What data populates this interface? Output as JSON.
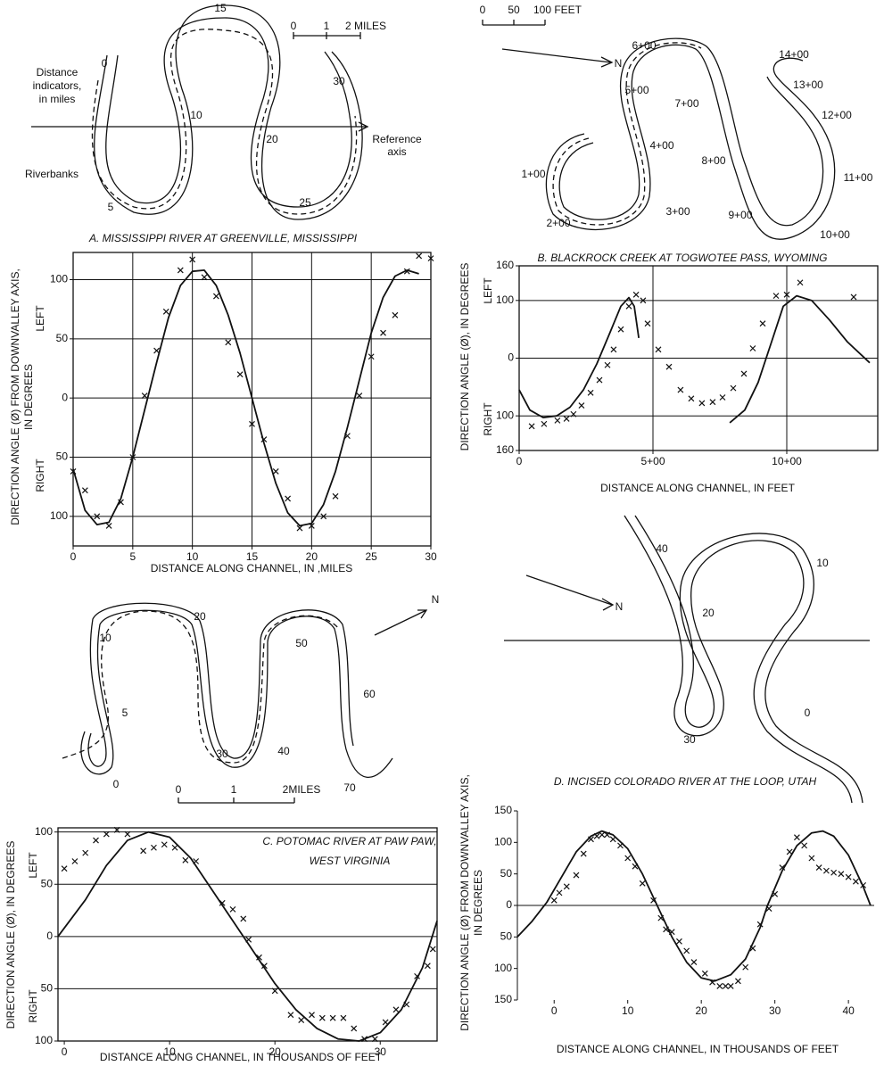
{
  "chart_data": [
    {
      "type": "scatter",
      "title": "A. MISSISSIPPI RIVER AT GREENVILLE, MISSISSIPPI",
      "map_labels": [
        "15",
        "0",
        "Distance",
        "indicators,",
        "in miles",
        "10",
        "30",
        "20",
        "Reference",
        "axis",
        "Riverbanks",
        "5",
        "25",
        "0",
        "1",
        "2 MILES"
      ],
      "ylabel": [
        "DIRECTION ANGLE (Ø) FROM DOWNVALLEY AXIS,",
        "IN DEGREES"
      ],
      "ylabel_left": "LEFT",
      "ylabel_right": "RIGHT",
      "xlabel": "DISTANCE ALONG CHANNEL, IN ,MILES",
      "xlim": [
        0,
        30
      ],
      "ylim": [
        -125,
        123
      ],
      "xticks": [
        0,
        5,
        10,
        15,
        20,
        25,
        30
      ],
      "yticks": [
        {
          "value": -100,
          "label": "100"
        },
        {
          "value": -50,
          "label": "50"
        },
        0,
        50,
        100
      ],
      "grid": "both",
      "frame": true,
      "series": [
        {
          "style": "marker",
          "color": "#111",
          "x": [
            0,
            1,
            2,
            3,
            4,
            5,
            6,
            7,
            7.8,
            9,
            10,
            11,
            12,
            13,
            14,
            15,
            16,
            17,
            18,
            19,
            20,
            21,
            22,
            23,
            24,
            25,
            26,
            27,
            28,
            29,
            30
          ],
          "values": [
            -62,
            -78,
            -100,
            -108,
            -88,
            -50,
            2,
            40,
            73,
            108,
            117,
            102,
            86,
            47,
            20,
            -22,
            -35,
            -62,
            -85,
            -110,
            -108,
            -100,
            -83,
            -32,
            2,
            35,
            55,
            70,
            107,
            120,
            118
          ]
        },
        {
          "style": "line",
          "color": "#111",
          "x": [
            0,
            1,
            2,
            3,
            4,
            5,
            6,
            7,
            8,
            9,
            10,
            11,
            12,
            13,
            14,
            15,
            16,
            17,
            18,
            19,
            20,
            21,
            22,
            23,
            24,
            25,
            26,
            27,
            28,
            29
          ],
          "values": [
            -60,
            -95,
            -107,
            -105,
            -85,
            -50,
            -10,
            30,
            68,
            95,
            107,
            108,
            95,
            70,
            38,
            0,
            -38,
            -72,
            -97,
            -108,
            -106,
            -90,
            -62,
            -25,
            15,
            55,
            85,
            103,
            108,
            105
          ]
        }
      ]
    },
    {
      "type": "scatter",
      "title": "B. BLACKROCK CREEK AT TOGWOTEE PASS, WYOMING",
      "map_labels": [
        "0",
        "50",
        "100 FEET",
        "N",
        "6+00",
        "5+00",
        "7+00",
        "4+00",
        "1+00",
        "8+00",
        "2+00",
        "3+00",
        "9+00",
        "10+00",
        "11+00",
        "12+00",
        "13+00",
        "14+00"
      ],
      "ylabel": [
        "DIRECTION ANGLE (Ø), IN DEGREES"
      ],
      "ylabel_left": "LEFT",
      "ylabel_right": "RIGHT",
      "xlabel": "DISTANCE ALONG CHANNEL, IN FEET",
      "xlim": [
        0,
        1340
      ],
      "ylim": [
        -160,
        160
      ],
      "xticks": [
        0,
        {
          "value": 500,
          "label": "5+00"
        },
        {
          "value": 1000,
          "label": "10+00"
        }
      ],
      "yticks": [
        {
          "value": -160,
          "label": "160"
        },
        {
          "value": -100,
          "label": "100"
        },
        0,
        100,
        160
      ],
      "grid": "both",
      "frame": true,
      "series": [
        {
          "style": "marker",
          "color": "#111",
          "x": [
            47,
            93,
            143,
            177,
            203,
            233,
            267,
            300,
            330,
            353,
            380,
            410,
            437,
            463,
            480,
            520,
            560,
            603,
            643,
            683,
            723,
            760,
            800,
            840,
            873,
            910,
            960,
            1000,
            1050,
            1250
          ],
          "values": [
            -118,
            -114,
            -108,
            -105,
            -97,
            -82,
            -60,
            -38,
            -12,
            15,
            50,
            90,
            110,
            100,
            60,
            15,
            -15,
            -55,
            -70,
            -78,
            -76,
            -68,
            -52,
            -27,
            17,
            60,
            108,
            110,
            131,
            106
          ]
        },
        {
          "style": "line",
          "color": "#111",
          "x": [
            0,
            40,
            90,
            140,
            190,
            240,
            290,
            340,
            380,
            410,
            430,
            447,
            600,
            787,
            843,
            893,
            943,
            987,
            1037,
            1093,
            1160,
            1227,
            1310
          ],
          "values": [
            -55,
            -90,
            -103,
            -100,
            -85,
            -55,
            -10,
            45,
            90,
            105,
            90,
            35,
            null,
            -112,
            -90,
            -42,
            28,
            90,
            108,
            100,
            66,
            28,
            -8
          ]
        }
      ]
    },
    {
      "type": "scatter",
      "title": [
        "C. POTOMAC RIVER AT PAW PAW,",
        "WEST VIRGINIA"
      ],
      "map_labels": [
        "N",
        "20",
        "10",
        "50",
        "60",
        "5",
        "30",
        "40",
        "70",
        "0",
        "0",
        "1",
        "2MILES"
      ],
      "ylabel": [
        "DIRECTION ANGLE (Ø), IN DEGREES"
      ],
      "ylabel_left": "LEFT",
      "ylabel_right": "RIGHT",
      "xlabel": "DISTANCE ALONG CHANNEL, IN THOUSANDS OF FEET",
      "xlim": [
        -0.6,
        35.4
      ],
      "ylim": [
        -100,
        104
      ],
      "xticks": [
        0,
        10,
        20,
        30
      ],
      "yticks": [
        {
          "value": -100,
          "label": "100"
        },
        {
          "value": -50,
          "label": "50"
        },
        0,
        50,
        100
      ],
      "grid": "y",
      "frame": true,
      "series": [
        {
          "style": "marker",
          "color": "#111",
          "x": [
            0,
            1,
            2,
            3,
            4,
            5,
            6,
            7.5,
            8.5,
            9.5,
            10.5,
            11.5,
            12.5,
            15,
            16,
            17,
            17.5,
            18.5,
            19,
            20,
            21.5,
            22.5,
            23.5,
            24.5,
            25.5,
            26.5,
            27.5,
            28.5,
            29.5,
            30.5,
            31.5,
            32.5,
            33.5,
            34.5,
            35
          ],
          "values": [
            65,
            72,
            80,
            92,
            98,
            102,
            98,
            82,
            85,
            88,
            85,
            73,
            72,
            32,
            26,
            17,
            -3,
            -20,
            -28,
            -52,
            -75,
            -80,
            -75,
            -78,
            -78,
            -78,
            -88,
            -98,
            -98,
            -82,
            -70,
            -65,
            -38,
            -28,
            -12
          ]
        },
        {
          "style": "line",
          "color": "#111",
          "x": [
            -0.6,
            2,
            4,
            6,
            8,
            10,
            12,
            14,
            16,
            18,
            20,
            22,
            24,
            26,
            28,
            30,
            32,
            34,
            35.4
          ],
          "values": [
            0,
            35,
            68,
            92,
            100,
            95,
            75,
            45,
            15,
            -15,
            -45,
            -70,
            -88,
            -98,
            -100,
            -92,
            -70,
            -30,
            15
          ]
        }
      ]
    },
    {
      "type": "scatter",
      "title": "D. INCISED COLORADO RIVER AT THE LOOP, UTAH",
      "map_labels": [
        "40",
        "10",
        "N",
        "20",
        "30",
        "0"
      ],
      "ylabel": [
        "DIRECTION ANGLE (Ø) FROM DOWNVALLEY AXIS,",
        "IN DEGREES"
      ],
      "xlabel": "DISTANCE ALONG CHANNEL, IN THOUSANDS OF FEET",
      "xlim": [
        -5,
        43.5
      ],
      "ylim": [
        -150,
        150
      ],
      "xticks": [
        0,
        10,
        20,
        30,
        40
      ],
      "yticks": [
        {
          "value": -150,
          "label": "150"
        },
        {
          "value": -100,
          "label": "100"
        },
        {
          "value": -50,
          "label": "50"
        },
        0,
        50,
        100,
        150
      ],
      "grid": false,
      "frame": false,
      "series": [
        {
          "style": "marker",
          "color": "#111",
          "x": [
            0,
            0.7,
            1.7,
            3,
            4,
            5,
            5.8,
            6.5,
            7.2,
            8,
            9,
            10,
            11,
            12,
            13.5,
            14.5,
            15.2,
            16,
            17,
            18,
            19,
            20.5,
            21.5,
            22.5,
            23.3,
            24,
            25,
            26,
            27,
            28,
            29.2,
            30,
            31,
            32,
            33,
            34,
            35,
            36,
            37,
            38,
            39,
            40,
            41,
            42
          ],
          "values": [
            8,
            20,
            30,
            48,
            82,
            105,
            110,
            112,
            112,
            105,
            95,
            75,
            62,
            35,
            8,
            -20,
            -38,
            -42,
            -57,
            -72,
            -90,
            -108,
            -122,
            -128,
            -128,
            -128,
            -120,
            -98,
            -68,
            -30,
            -5,
            18,
            60,
            85,
            108,
            95,
            75,
            60,
            55,
            52,
            50,
            45,
            38,
            32
          ]
        },
        {
          "style": "line",
          "color": "#111",
          "x": [
            -5,
            -3,
            -1,
            1,
            3,
            5,
            6.5,
            8,
            10,
            12,
            14,
            16,
            18,
            20,
            21.8,
            24,
            26,
            28,
            29,
            31,
            33,
            35,
            36.5,
            38,
            40,
            42,
            43
          ],
          "values": [
            -50,
            -25,
            5,
            45,
            85,
            110,
            118,
            112,
            90,
            50,
            0,
            -50,
            -90,
            -115,
            -120,
            -110,
            -85,
            -35,
            0,
            55,
            95,
            115,
            118,
            110,
            80,
            30,
            0
          ]
        }
      ]
    }
  ]
}
